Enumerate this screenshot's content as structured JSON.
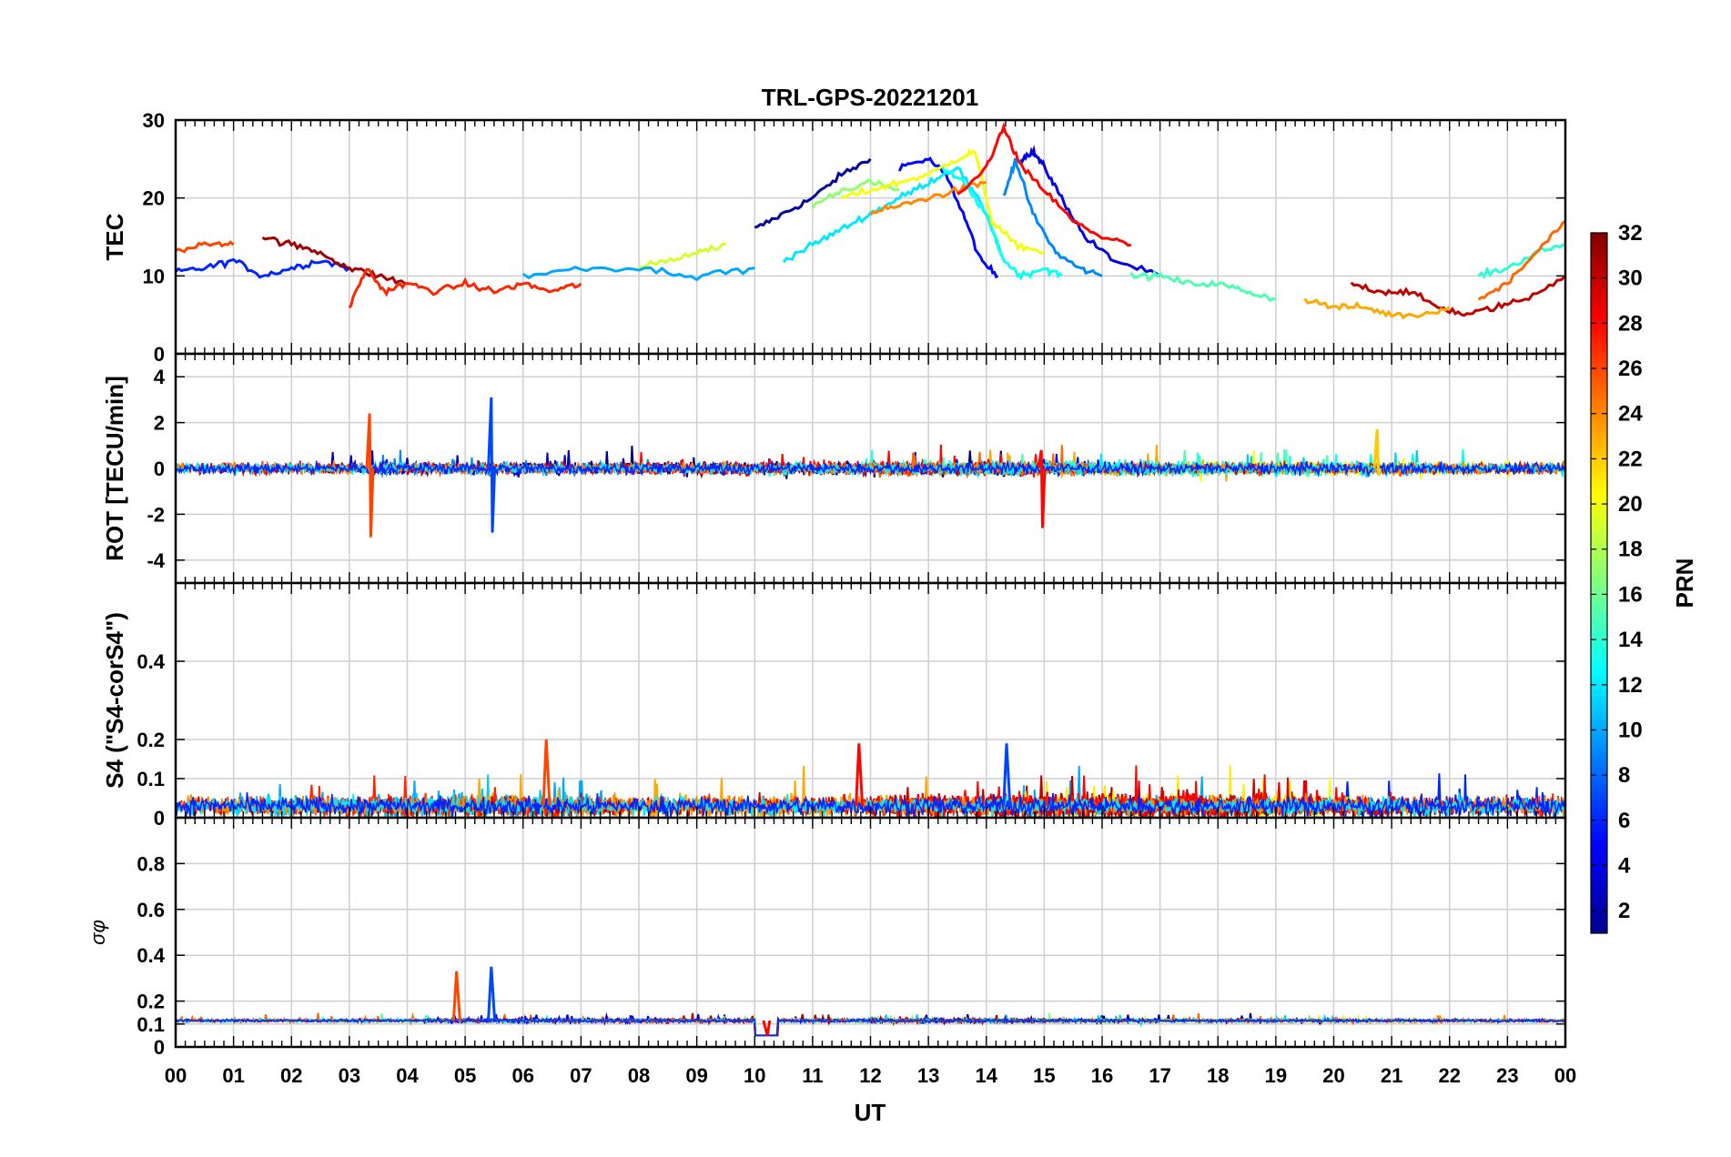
{
  "title": "TRL-GPS-20221201",
  "xlabel": "UT",
  "x_ticks": [
    "00",
    "01",
    "02",
    "03",
    "04",
    "05",
    "06",
    "07",
    "08",
    "09",
    "10",
    "11",
    "12",
    "13",
    "14",
    "15",
    "16",
    "17",
    "18",
    "19",
    "20",
    "21",
    "22",
    "23",
    "00"
  ],
  "colorbar": {
    "label": "PRN",
    "range": [
      1,
      32
    ],
    "ticks": [
      "2",
      "4",
      "6",
      "8",
      "10",
      "12",
      "14",
      "16",
      "18",
      "20",
      "22",
      "24",
      "26",
      "28",
      "30",
      "32"
    ],
    "colormap": "jet"
  },
  "chart_data": [
    {
      "type": "line",
      "panel": "TEC",
      "ylabel": "TEC",
      "ylim": [
        0,
        30
      ],
      "yticks": [
        "0",
        "10",
        "20",
        "30"
      ],
      "grid": true,
      "series": [
        {
          "name": "PRN 2",
          "x": [
            10.0,
            10.5,
            11.0,
            11.5,
            12.0
          ],
          "y": [
            16,
            18,
            20,
            23,
            25
          ]
        },
        {
          "name": "PRN 5",
          "x": [
            12.5,
            13.0,
            13.3,
            13.6,
            13.9,
            14.2
          ],
          "y": [
            24,
            25,
            23,
            18,
            12,
            10
          ]
        },
        {
          "name": "PRN 4",
          "x": [
            14.6,
            14.8,
            15.0,
            15.3,
            15.7,
            16.2,
            17.0
          ],
          "y": [
            25,
            26,
            24,
            20,
            15,
            12,
            10
          ]
        },
        {
          "name": "PRN 6",
          "x": [
            0.0,
            0.5,
            1.0,
            1.5,
            2.0,
            2.5,
            3.0
          ],
          "y": [
            10.5,
            11,
            12,
            10,
            11,
            12,
            11
          ]
        },
        {
          "name": "PRN 9",
          "x": [
            14.3,
            14.5,
            14.8,
            15.2,
            15.6,
            16.0
          ],
          "y": [
            20,
            25,
            18,
            13,
            11,
            10
          ]
        },
        {
          "name": "PRN 12",
          "x": [
            10.5,
            11.0,
            11.5,
            12.0,
            12.5,
            13.0,
            13.5,
            14.0,
            14.3
          ],
          "y": [
            12,
            14,
            16,
            18,
            20,
            22,
            24,
            18,
            12
          ]
        },
        {
          "name": "PRN 13",
          "x": [
            13.2,
            13.6,
            14.0,
            14.3,
            14.6,
            15.0,
            15.3
          ],
          "y": [
            24,
            22,
            18,
            12,
            10,
            11,
            10
          ]
        },
        {
          "name": "PRN 14",
          "x": [
            22.5,
            23.0,
            23.5,
            24.0
          ],
          "y": [
            10,
            11,
            13,
            14
          ]
        },
        {
          "name": "PRN 17",
          "x": [
            11.0,
            11.5,
            12.0,
            12.5
          ],
          "y": [
            19,
            21,
            22,
            21
          ]
        },
        {
          "name": "PRN 20",
          "x": [
            11.5,
            12.0,
            12.5,
            13.0,
            13.5,
            13.8,
            14.1,
            14.5,
            15.0
          ],
          "y": [
            20,
            21,
            22,
            23,
            25,
            26,
            17,
            14,
            13
          ]
        },
        {
          "name": "PRN 24",
          "x": [
            12.0,
            12.5,
            13.0,
            13.5,
            14.0
          ],
          "y": [
            18,
            19,
            20,
            21,
            22
          ]
        },
        {
          "name": "PRN 25",
          "x": [
            22.5,
            23.0,
            23.5,
            24.0
          ],
          "y": [
            7,
            9,
            13,
            17
          ]
        },
        {
          "name": "PRN 28",
          "x": [
            13.5,
            14.0,
            14.3,
            14.6,
            15.0,
            15.5,
            16.0,
            16.5
          ],
          "y": [
            20,
            24,
            29,
            24,
            21,
            17,
            15,
            14
          ]
        },
        {
          "name": "PRN 26",
          "x": [
            0.0,
            0.5,
            1.0
          ],
          "y": [
            13,
            14,
            14
          ]
        },
        {
          "name": "PRN 30",
          "x": [
            20.3,
            20.8,
            21.3,
            21.8,
            22.3,
            22.8,
            23.3,
            24.0
          ],
          "y": [
            9,
            8,
            8,
            6,
            5,
            6,
            7,
            10
          ]
        },
        {
          "name": "PRN 31",
          "x": [
            1.5,
            2.0,
            2.5,
            3.0,
            3.5,
            4.0
          ],
          "y": [
            15,
            14,
            13,
            11,
            10,
            9
          ]
        },
        {
          "name": "PRN 27",
          "x": [
            3.0,
            3.3,
            3.6,
            4.0,
            4.5,
            5.0,
            5.5,
            6.0,
            6.5,
            7.0
          ],
          "y": [
            6,
            11,
            8,
            9,
            8,
            9,
            8,
            9,
            8,
            9
          ]
        },
        {
          "name": "PRN 19",
          "x": [
            8.0,
            8.5,
            9.0,
            9.5
          ],
          "y": [
            11,
            12,
            13,
            14
          ]
        },
        {
          "name": "PRN 10",
          "x": [
            6.0,
            7.0,
            8.0,
            9.0,
            10.0
          ],
          "y": [
            10,
            11,
            11,
            10,
            11
          ]
        },
        {
          "name": "PRN 15",
          "x": [
            16.5,
            17.0,
            17.5,
            18.0,
            18.5,
            19.0
          ],
          "y": [
            10,
            10,
            9,
            9,
            8,
            7
          ]
        },
        {
          "name": "PRN 23",
          "x": [
            19.5,
            20.0,
            20.5,
            21.0,
            21.5,
            22.0
          ],
          "y": [
            7,
            6,
            6,
            5,
            5,
            6
          ]
        }
      ]
    },
    {
      "type": "line",
      "panel": "ROT",
      "ylabel": "ROT [TECU/min]",
      "ylim": [
        -5,
        5
      ],
      "yticks": [
        "-4",
        "-2",
        "0",
        "2",
        "4"
      ],
      "grid": true,
      "annotations": [
        {
          "x": 3.35,
          "peak": 2.4,
          "trough": -3.0
        },
        {
          "x": 5.45,
          "peak": 3.1,
          "trough": -2.8
        },
        {
          "x": 14.95,
          "peak": 0.8,
          "trough": -2.6
        },
        {
          "x": 20.75,
          "peak": 1.7,
          "trough": -0.3
        }
      ]
    },
    {
      "type": "line",
      "panel": "S4",
      "ylabel": "S4 (\"S4-corS4\")",
      "ylim": [
        0,
        0.6
      ],
      "yticks": [
        "0",
        "0.1",
        "0.2",
        "0.4"
      ],
      "grid": true,
      "annotations": [
        {
          "x": 6.4,
          "peak": 0.2
        },
        {
          "x": 14.35,
          "peak": 0.19
        },
        {
          "x": 11.8,
          "peak": 0.19
        }
      ]
    },
    {
      "type": "line",
      "panel": "sigma_phi",
      "ylabel": "σφ",
      "ylim": [
        0,
        1.0
      ],
      "yticks": [
        "0",
        "0.1",
        "0.2",
        "0.4",
        "0.6",
        "0.8"
      ],
      "grid": true,
      "annotations": [
        {
          "x": 4.85,
          "peak": 0.33
        },
        {
          "x": 5.45,
          "peak": 0.35
        },
        {
          "x": 10.2,
          "trough": 0.05
        }
      ]
    }
  ]
}
